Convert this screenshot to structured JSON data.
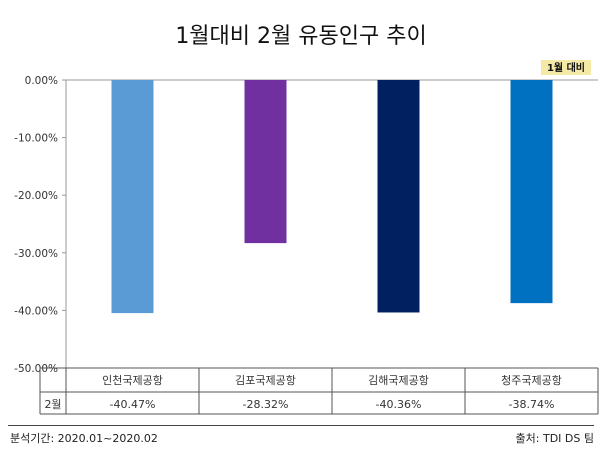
{
  "title": "1월대비 2월 유동인구 추이",
  "legend_label": "1월 대비",
  "row_label": "2월",
  "footer": {
    "period": "분석기간: 2020.01~2020.02",
    "source": "출처: TDI DS 팀"
  },
  "chart_data": {
    "type": "bar",
    "title": "1월대비 2월 유동인구 추이",
    "categories": [
      "인천국제공항",
      "김포국제공항",
      "김해국제공항",
      "청주국제공항"
    ],
    "series": [
      {
        "name": "2월",
        "values": [
          -40.47,
          -28.32,
          -40.36,
          -38.74
        ],
        "value_labels": [
          "-40.47%",
          "-28.32%",
          "-40.36%",
          "-38.74%"
        ]
      }
    ],
    "colors": [
      "#5b9bd5",
      "#7030a0",
      "#002060",
      "#0070c0"
    ],
    "ylim": [
      -50,
      0
    ],
    "yticks": [
      0,
      -10,
      -20,
      -30,
      -40,
      -50
    ],
    "ytick_labels": [
      "0.00%",
      "-10.00%",
      "-20.00%",
      "-30.00%",
      "-40.00%",
      "-50.00%"
    ],
    "grid": false,
    "legend": "top-right",
    "data_table": true
  }
}
